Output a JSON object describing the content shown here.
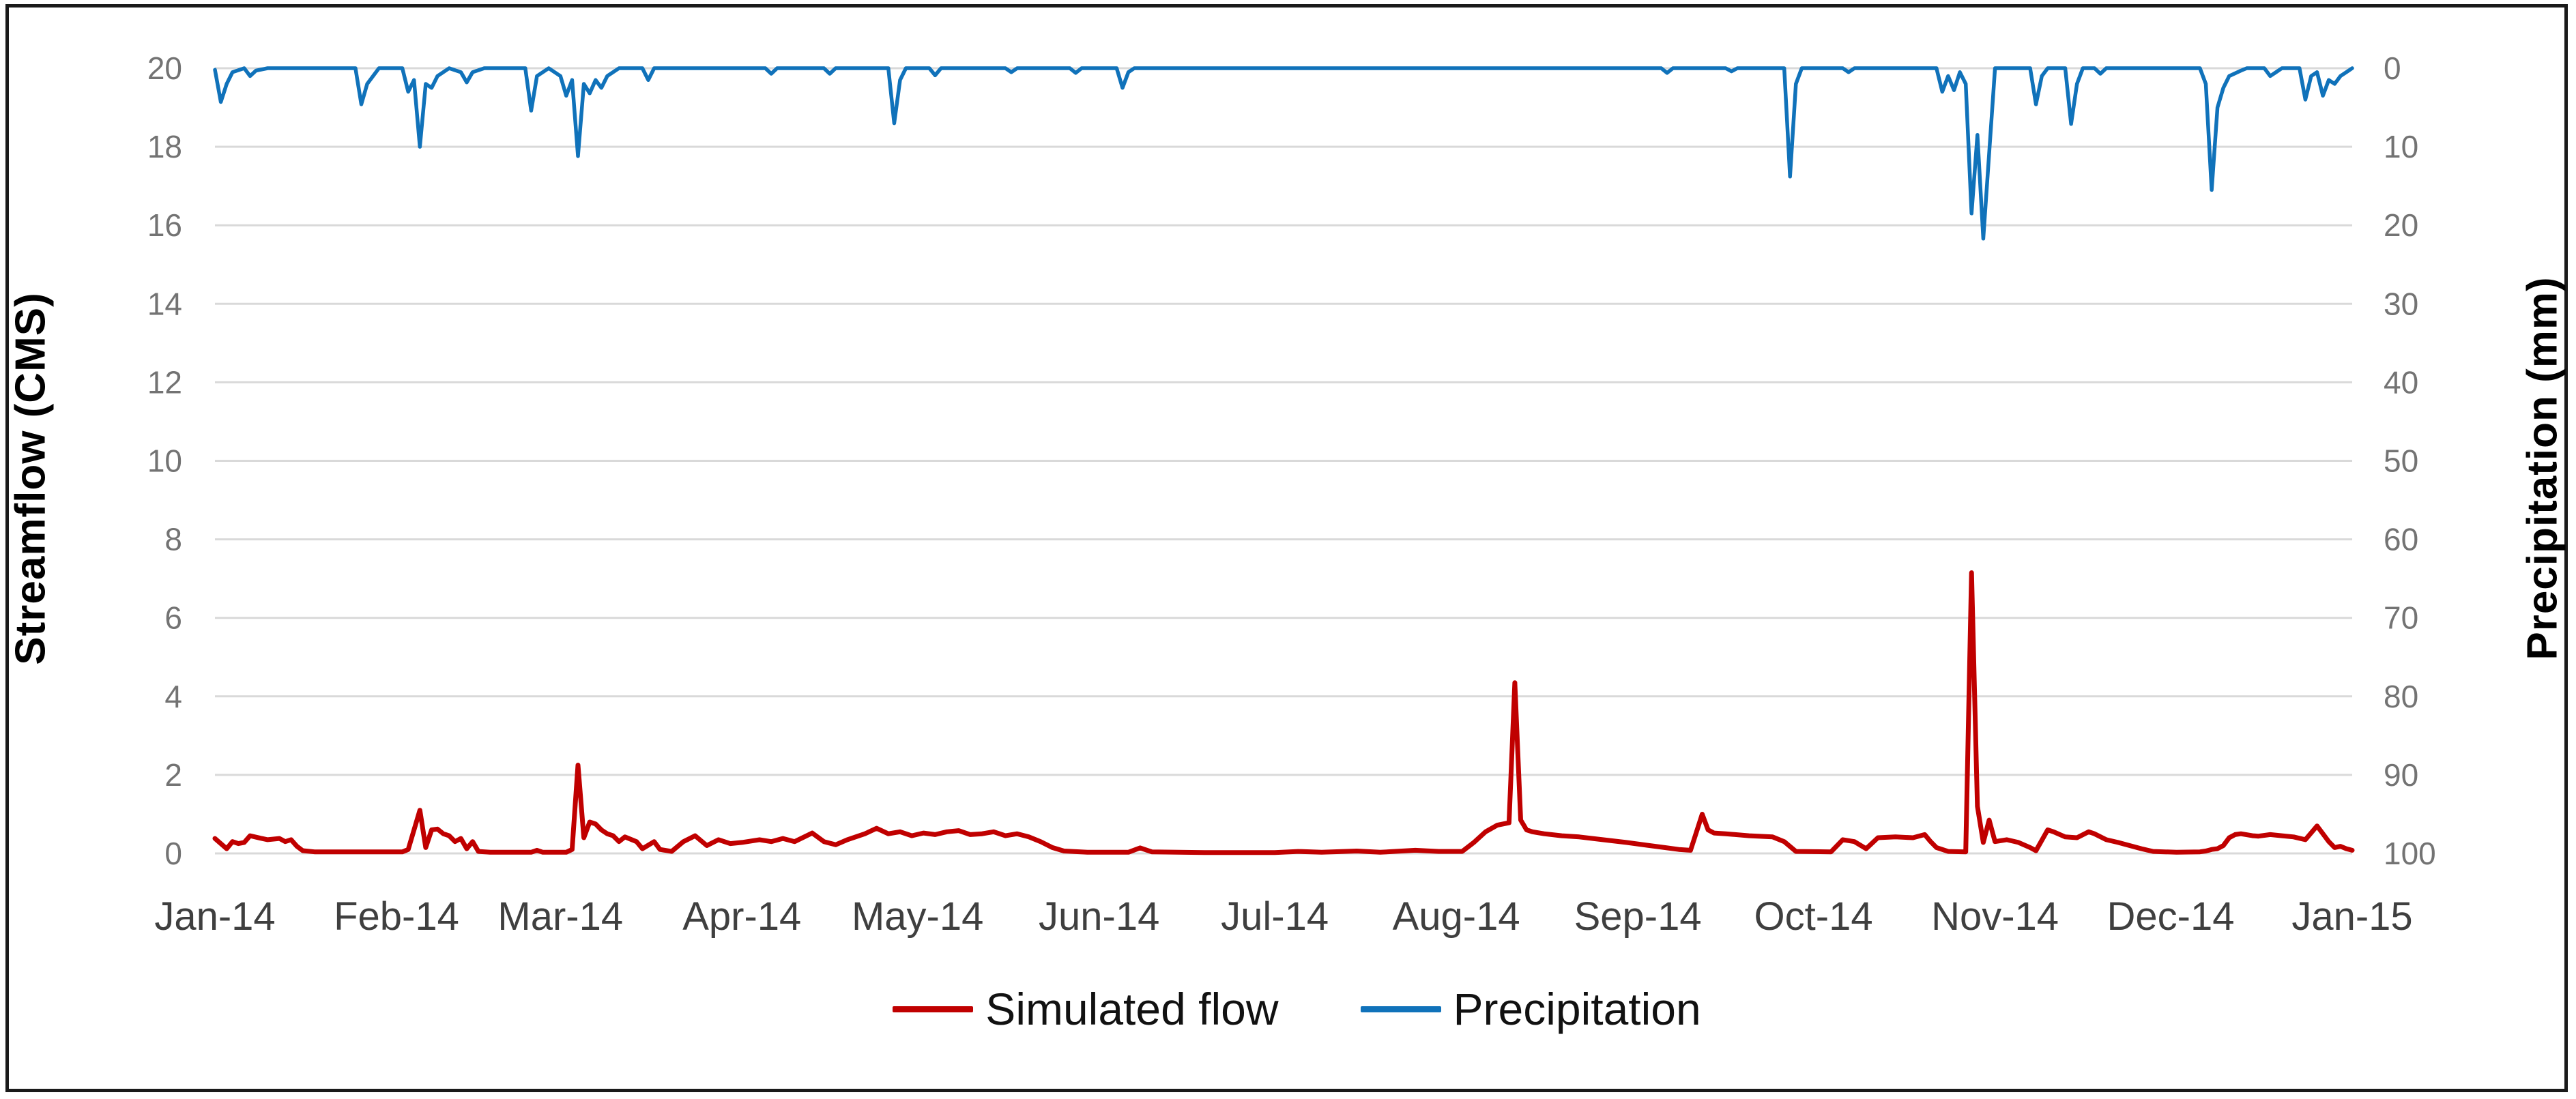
{
  "chart_data": {
    "type": "line",
    "title": "",
    "x_axis": {
      "labels": [
        "Jan-14",
        "Feb-14",
        "Mar-14",
        "Apr-14",
        "May-14",
        "Jun-14",
        "Jul-14",
        "Aug-14",
        "Sep-14",
        "Oct-14",
        "Nov-14",
        "Dec-14",
        "Jan-15"
      ],
      "month_start_days": [
        1,
        32,
        60,
        91,
        121,
        152,
        182,
        213,
        244,
        274,
        305,
        335,
        366
      ],
      "day_range": [
        1,
        366
      ],
      "label_color": "#3f3f3f"
    },
    "y_left": {
      "label": "Streamflow (CMS)",
      "min": 0,
      "max": 20,
      "tick_step": 2,
      "ticks": [
        0,
        2,
        4,
        6,
        8,
        10,
        12,
        14,
        16,
        18,
        20
      ],
      "tick_color": "#737373"
    },
    "y_right": {
      "label": "Precipitation (mm)",
      "min": 0,
      "max": 100,
      "tick_step": 10,
      "inverted": true,
      "ticks": [
        0,
        10,
        20,
        30,
        40,
        50,
        60,
        70,
        80,
        90,
        100
      ],
      "tick_color": "#737373"
    },
    "grid": {
      "on": true,
      "color": "#d9d9d9"
    },
    "legend": {
      "position": "bottom",
      "items": [
        {
          "name": "Simulated flow",
          "color": "#c00000"
        },
        {
          "name": "Precipitation",
          "color": "#1072ba"
        }
      ]
    },
    "series": [
      {
        "name": "Simulated flow",
        "axis": "left",
        "color": "#c00000",
        "stroke_width": 7,
        "points": [
          [
            1,
            0.38
          ],
          [
            3,
            0.12
          ],
          [
            4,
            0.3
          ],
          [
            5,
            0.25
          ],
          [
            6,
            0.28
          ],
          [
            7,
            0.45
          ],
          [
            9,
            0.38
          ],
          [
            10,
            0.35
          ],
          [
            12,
            0.38
          ],
          [
            13,
            0.3
          ],
          [
            14,
            0.35
          ],
          [
            15,
            0.18
          ],
          [
            16,
            0.07
          ],
          [
            18,
            0.04
          ],
          [
            33,
            0.04
          ],
          [
            34,
            0.1
          ],
          [
            36,
            1.1
          ],
          [
            37,
            0.15
          ],
          [
            38,
            0.6
          ],
          [
            39,
            0.62
          ],
          [
            40,
            0.5
          ],
          [
            41,
            0.45
          ],
          [
            42,
            0.3
          ],
          [
            43,
            0.38
          ],
          [
            44,
            0.12
          ],
          [
            45,
            0.3
          ],
          [
            46,
            0.05
          ],
          [
            48,
            0.03
          ],
          [
            55,
            0.03
          ],
          [
            56,
            0.08
          ],
          [
            57,
            0.03
          ],
          [
            61,
            0.03
          ],
          [
            62,
            0.1
          ],
          [
            63,
            2.25
          ],
          [
            64,
            0.4
          ],
          [
            65,
            0.8
          ],
          [
            66,
            0.75
          ],
          [
            67,
            0.6
          ],
          [
            68,
            0.5
          ],
          [
            69,
            0.45
          ],
          [
            70,
            0.3
          ],
          [
            71,
            0.42
          ],
          [
            73,
            0.3
          ],
          [
            74,
            0.12
          ],
          [
            76,
            0.3
          ],
          [
            77,
            0.1
          ],
          [
            79,
            0.05
          ],
          [
            81,
            0.3
          ],
          [
            83,
            0.45
          ],
          [
            85,
            0.2
          ],
          [
            87,
            0.35
          ],
          [
            89,
            0.25
          ],
          [
            91,
            0.28
          ],
          [
            94,
            0.35
          ],
          [
            96,
            0.3
          ],
          [
            98,
            0.38
          ],
          [
            100,
            0.3
          ],
          [
            103,
            0.52
          ],
          [
            105,
            0.3
          ],
          [
            107,
            0.22
          ],
          [
            109,
            0.35
          ],
          [
            112,
            0.5
          ],
          [
            114,
            0.64
          ],
          [
            116,
            0.5
          ],
          [
            118,
            0.55
          ],
          [
            120,
            0.45
          ],
          [
            122,
            0.52
          ],
          [
            124,
            0.48
          ],
          [
            126,
            0.55
          ],
          [
            128,
            0.58
          ],
          [
            130,
            0.48
          ],
          [
            132,
            0.5
          ],
          [
            134,
            0.55
          ],
          [
            136,
            0.45
          ],
          [
            138,
            0.5
          ],
          [
            140,
            0.42
          ],
          [
            142,
            0.3
          ],
          [
            144,
            0.15
          ],
          [
            146,
            0.06
          ],
          [
            150,
            0.03
          ],
          [
            157,
            0.03
          ],
          [
            159,
            0.14
          ],
          [
            161,
            0.04
          ],
          [
            170,
            0.02
          ],
          [
            182,
            0.02
          ],
          [
            186,
            0.05
          ],
          [
            190,
            0.03
          ],
          [
            196,
            0.06
          ],
          [
            200,
            0.03
          ],
          [
            206,
            0.08
          ],
          [
            210,
            0.05
          ],
          [
            214,
            0.05
          ],
          [
            216,
            0.28
          ],
          [
            218,
            0.55
          ],
          [
            220,
            0.72
          ],
          [
            222,
            0.78
          ],
          [
            223,
            4.35
          ],
          [
            224,
            0.85
          ],
          [
            225,
            0.6
          ],
          [
            226,
            0.55
          ],
          [
            228,
            0.5
          ],
          [
            231,
            0.45
          ],
          [
            234,
            0.42
          ],
          [
            238,
            0.35
          ],
          [
            242,
            0.28
          ],
          [
            246,
            0.2
          ],
          [
            249,
            0.14
          ],
          [
            251,
            0.1
          ],
          [
            253,
            0.08
          ],
          [
            255,
            1.0
          ],
          [
            256,
            0.6
          ],
          [
            257,
            0.52
          ],
          [
            259,
            0.5
          ],
          [
            263,
            0.45
          ],
          [
            267,
            0.42
          ],
          [
            269,
            0.3
          ],
          [
            271,
            0.05
          ],
          [
            277,
            0.04
          ],
          [
            279,
            0.35
          ],
          [
            281,
            0.3
          ],
          [
            283,
            0.12
          ],
          [
            285,
            0.4
          ],
          [
            288,
            0.42
          ],
          [
            291,
            0.4
          ],
          [
            293,
            0.48
          ],
          [
            294,
            0.3
          ],
          [
            295,
            0.15
          ],
          [
            297,
            0.05
          ],
          [
            300,
            0.04
          ],
          [
            301,
            7.15
          ],
          [
            302,
            1.2
          ],
          [
            303,
            0.28
          ],
          [
            304,
            0.85
          ],
          [
            305,
            0.3
          ],
          [
            307,
            0.35
          ],
          [
            309,
            0.28
          ],
          [
            311,
            0.15
          ],
          [
            312,
            0.07
          ],
          [
            314,
            0.6
          ],
          [
            315,
            0.55
          ],
          [
            317,
            0.42
          ],
          [
            319,
            0.4
          ],
          [
            321,
            0.55
          ],
          [
            322,
            0.5
          ],
          [
            324,
            0.35
          ],
          [
            326,
            0.28
          ],
          [
            328,
            0.2
          ],
          [
            330,
            0.12
          ],
          [
            332,
            0.05
          ],
          [
            336,
            0.03
          ],
          [
            340,
            0.04
          ],
          [
            341,
            0.06
          ],
          [
            342,
            0.1
          ],
          [
            343,
            0.12
          ],
          [
            344,
            0.2
          ],
          [
            345,
            0.4
          ],
          [
            346,
            0.48
          ],
          [
            347,
            0.5
          ],
          [
            349,
            0.45
          ],
          [
            350,
            0.44
          ],
          [
            352,
            0.48
          ],
          [
            354,
            0.45
          ],
          [
            356,
            0.42
          ],
          [
            358,
            0.35
          ],
          [
            360,
            0.7
          ],
          [
            361,
            0.5
          ],
          [
            362,
            0.3
          ],
          [
            363,
            0.15
          ],
          [
            364,
            0.18
          ],
          [
            365,
            0.12
          ],
          [
            366,
            0.08
          ]
        ]
      },
      {
        "name": "Precipitation",
        "axis": "right",
        "color": "#1072ba",
        "stroke_width": 5.5,
        "points": [
          [
            1,
            0.2
          ],
          [
            2,
            4.3
          ],
          [
            3,
            2
          ],
          [
            4,
            0.5
          ],
          [
            6,
            0
          ],
          [
            7,
            1
          ],
          [
            8,
            0.3
          ],
          [
            10,
            0
          ],
          [
            25,
            0
          ],
          [
            26,
            4.6
          ],
          [
            27,
            2
          ],
          [
            29,
            0
          ],
          [
            33,
            0
          ],
          [
            34,
            3
          ],
          [
            35,
            1.5
          ],
          [
            36,
            10
          ],
          [
            37,
            2
          ],
          [
            38,
            2.5
          ],
          [
            39,
            1
          ],
          [
            41,
            0
          ],
          [
            43,
            0.5
          ],
          [
            44,
            1.8
          ],
          [
            45,
            0.5
          ],
          [
            47,
            0
          ],
          [
            54,
            0
          ],
          [
            55,
            5.4
          ],
          [
            56,
            1
          ],
          [
            58,
            0
          ],
          [
            60,
            1
          ],
          [
            61,
            3.5
          ],
          [
            62,
            1.5
          ],
          [
            63,
            11.2
          ],
          [
            64,
            2
          ],
          [
            65,
            3.2
          ],
          [
            66,
            1.5
          ],
          [
            67,
            2.5
          ],
          [
            68,
            1
          ],
          [
            70,
            0
          ],
          [
            74,
            0
          ],
          [
            75,
            1.5
          ],
          [
            76,
            0
          ],
          [
            95,
            0
          ],
          [
            96,
            0.7
          ],
          [
            97,
            0
          ],
          [
            105,
            0
          ],
          [
            106,
            0.7
          ],
          [
            107,
            0
          ],
          [
            116,
            0
          ],
          [
            117,
            7
          ],
          [
            118,
            1.5
          ],
          [
            119,
            0
          ],
          [
            123,
            0
          ],
          [
            124,
            0.9
          ],
          [
            125,
            0
          ],
          [
            136,
            0
          ],
          [
            137,
            0.5
          ],
          [
            138,
            0
          ],
          [
            147,
            0
          ],
          [
            148,
            0.6
          ],
          [
            149,
            0
          ],
          [
            155,
            0
          ],
          [
            156,
            2.5
          ],
          [
            157,
            0.5
          ],
          [
            158,
            0
          ],
          [
            248,
            0
          ],
          [
            249,
            0.6
          ],
          [
            250,
            0
          ],
          [
            259,
            0
          ],
          [
            260,
            0.4
          ],
          [
            261,
            0
          ],
          [
            269,
            0
          ],
          [
            270,
            13.8
          ],
          [
            271,
            2
          ],
          [
            272,
            0
          ],
          [
            279,
            0
          ],
          [
            280,
            0.5
          ],
          [
            281,
            0
          ],
          [
            295,
            0
          ],
          [
            296,
            3
          ],
          [
            297,
            1
          ],
          [
            298,
            2.8
          ],
          [
            299,
            0.5
          ],
          [
            300,
            2
          ],
          [
            301,
            18.5
          ],
          [
            302,
            8.5
          ],
          [
            303,
            21.7
          ],
          [
            305,
            0
          ],
          [
            311,
            0
          ],
          [
            312,
            4.6
          ],
          [
            313,
            1
          ],
          [
            314,
            0
          ],
          [
            317,
            0
          ],
          [
            318,
            7.1
          ],
          [
            319,
            2
          ],
          [
            320,
            0
          ],
          [
            322,
            0
          ],
          [
            323,
            0.7
          ],
          [
            324,
            0
          ],
          [
            340,
            0
          ],
          [
            341,
            2
          ],
          [
            342,
            15.5
          ],
          [
            343,
            5
          ],
          [
            344,
            2.5
          ],
          [
            345,
            1
          ],
          [
            347,
            0.3
          ],
          [
            348,
            0
          ],
          [
            351,
            0
          ],
          [
            352,
            1
          ],
          [
            353,
            0.5
          ],
          [
            354,
            0
          ],
          [
            357,
            0
          ],
          [
            358,
            4
          ],
          [
            359,
            1
          ],
          [
            360,
            0.5
          ],
          [
            361,
            3.5
          ],
          [
            362,
            1.5
          ],
          [
            363,
            2
          ],
          [
            364,
            1
          ],
          [
            365,
            0.5
          ],
          [
            366,
            0
          ]
        ]
      }
    ]
  }
}
